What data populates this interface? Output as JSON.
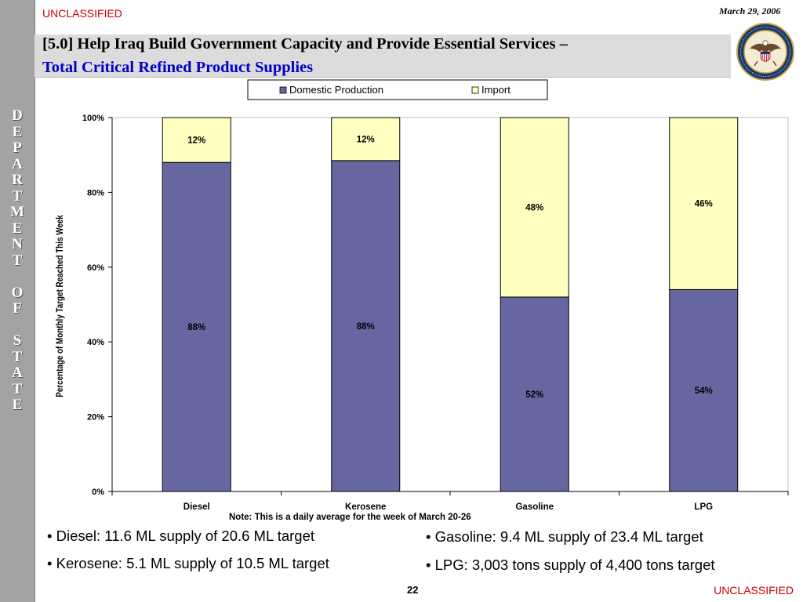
{
  "header": {
    "classification": "UNCLASSIFIED",
    "date": "March 29, 2006",
    "title_line1": "[5.0] Help Iraq Build Government Capacity and Provide Essential Services –",
    "title_line2": "Total Critical Refined Product Supplies"
  },
  "sidebar": {
    "letters": [
      "D",
      "E",
      "P",
      "A",
      "R",
      "T",
      "M",
      "E",
      "N",
      "T",
      "",
      "O",
      "F",
      "",
      "S",
      "T",
      "A",
      "T",
      "E"
    ]
  },
  "seal": {
    "text": "DEPARTMENT OF STATE · UNITED STATES OF AMERICA"
  },
  "colors": {
    "domestic": "#6666a0",
    "import": "#ffffc0",
    "classification": "#cc0000",
    "title_blue": "#0000cc"
  },
  "chart_data": {
    "type": "bar",
    "stacked": true,
    "title": "",
    "xlabel": "",
    "ylabel": "Percentage of Monthly Target Reached This Week",
    "ylim": [
      0,
      100
    ],
    "yticks": [
      "0%",
      "20%",
      "40%",
      "60%",
      "80%",
      "100%"
    ],
    "categories": [
      "Diesel",
      "Kerosene",
      "Gasoline",
      "LPG"
    ],
    "series": [
      {
        "name": "Domestic Production",
        "values": [
          88,
          88.5,
          52,
          54
        ],
        "labels": [
          "88%",
          "88%",
          "52%",
          "54%"
        ]
      },
      {
        "name": "Import",
        "values": [
          12,
          11.5,
          48,
          46
        ],
        "labels": [
          "12%",
          "12%",
          "48%",
          "46%"
        ]
      }
    ],
    "legend": "top",
    "grid": false
  },
  "note": "Note: This is a daily average for the week of March 20-26",
  "bullets": {
    "left": [
      "• Diesel: 11.6 ML supply of 20.6 ML target",
      "• Kerosene: 5.1 ML supply of 10.5 ML target"
    ],
    "right": [
      "• Gasoline: 9.4 ML supply of 23.4 ML target",
      "• LPG: 3,003 tons supply of 4,400 tons target"
    ]
  },
  "footer": {
    "page_number": "22",
    "classification": "UNCLASSIFIED"
  }
}
